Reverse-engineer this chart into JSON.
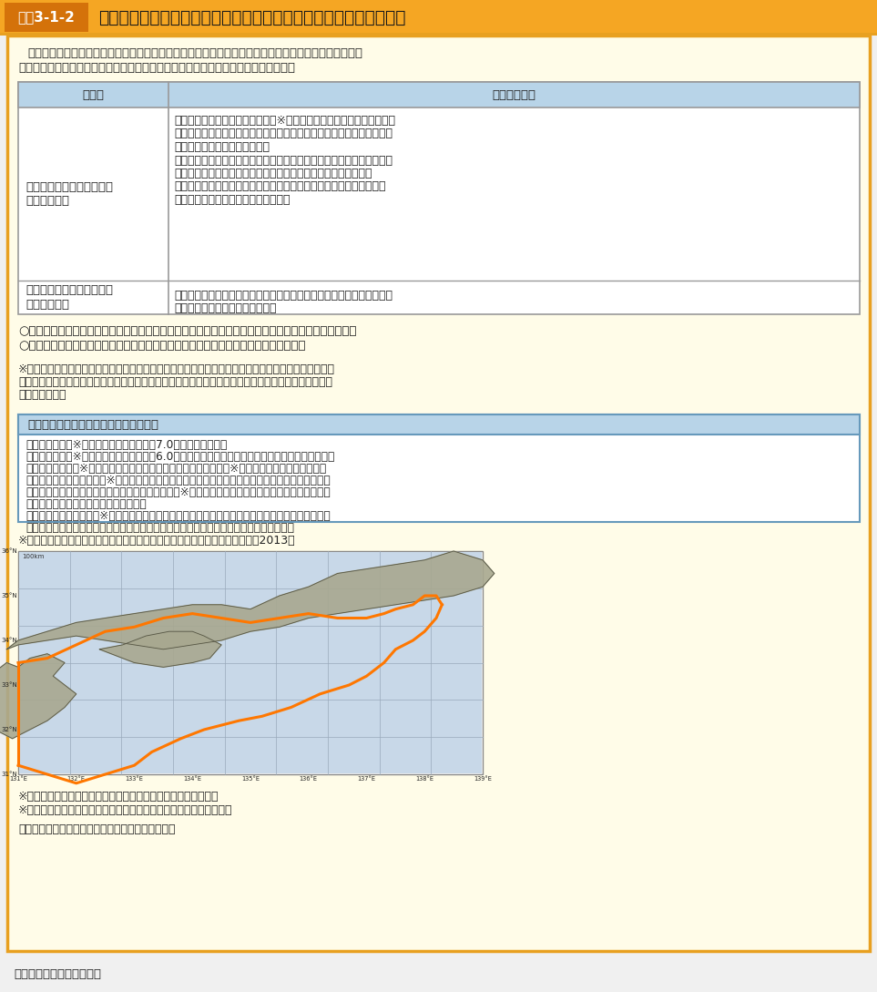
{
  "title_bar_color": "#F5A623",
  "title_label_bg": "#D4720A",
  "title_label_text": "図表3-1-2",
  "title_text": "気象庁が発表する南海トラフ地震に関連する情報の種類と発表条件",
  "outer_bg": "#FFFCE8",
  "outer_border": "#E8A020",
  "table_header_bg": "#B8D4E8",
  "table_border": "#999999",
  "blue_box_header_bg": "#B8D4E8",
  "blue_box_border": "#6699BB",
  "source_text": "出典：気象庁ホームページ",
  "intro_line1": "　南海トラフ全域を対象として、異常な現象を観測した場合や地震発生の可能性が相対的に高まってい",
  "intro_line2": "ると評価した場合等に、気象庁が「南海トラフ地震に関連する情報」の発表を行う。",
  "table_header_col1": "情報名",
  "table_header_col2": "情報発表条件",
  "row1_left": "南海トラフ地震に関連する\n情報（臨時）",
  "row1_bullets": [
    "・南海トラフ沿いで異常な現象（※１）が観測され、その現象が南海ト",
    "　ラフ沿いの大規模な地震と関連するかどうか調査を開始した場合、ま",
    "　たは調査を継続している場合",
    "・観測された現象を調査した結果、南海トラフ沿いの大規模な地震発生",
    "　の可能性が平常時と比べて相対的に高まったと評価された場合",
    "・南海トラフ沿いの大規模な地震発生の可能性が相対的に高まった状",
    "　態ではなくなったと評価された場合"
  ],
  "row2_left": "南海トラフ地震に関連する\n情報（定例）",
  "row2_bullets": [
    "・「南海トラフ沿いの地震に関する評価検討会」の定例会合において評",
    "　価した調査結果を発表する場合"
  ],
  "note_o1": "○本情報の運用開始に伴い、東海地震のみに着目した情報（東海地震に関連する情報）の発表はない。",
  "note_o2": "○本情報を発表していなくても、南海トラフ沿いの大規模地震が発生することもある。",
  "note1_lines": [
    "※１：南海トラフ沿いでマグニチュード７以上の地震が発生した場合や東海地域に設置されたひずみ計",
    "　　　に有意な変化を観測した場合など、気象庁が調査を開始する対象となる現象で、具体的には次の",
    "　　　とおり。"
  ],
  "blue_box_title": "気象庁が調査を開始する対象となる現象",
  "blue_box_items": [
    "・想定震源域（※２）内でマグニチュード7.0以上の地震が発生",
    "・想定震源域（※２）内でマグニチュード6.0以上の（或いは震度５弱以上を観測した）地震が発生",
    "　し、ひずみ計（※３）で当該地震に対応するステップ状の変化（※４）以外の特異な変化を観測",
    "・１カ所以上のひずみ計（※３）で有意な変化を観測し、同時に他の複数の観測点でもそれに関係す",
    "　ると思われる変化を観測している等、ひずみ計（※３）で南海トラフ沿いの大規模地震との関連性",
    "　の検討が必要と認められる変化を観測",
    "・その他、想定震源域（※２）内のプレート境界の固着状況の変化を示す可能性のある現象が観測さ",
    "　れた等、南海トラフ沿いの大規模地震との関連性の検討が必要と認められる現象を観測"
  ],
  "note2_line": "※２：想定震源域；下図に示す南海トラフ地震の想定震源域（中央防災会議、2013）",
  "note3_line": "※３：ひずみ計；当面、東海地域に設置されたひずみ計を使用。",
  "note4_line": "※４：ステップ状の変化；地震発生時に通常観測される段差的な変化",
  "closing_line": "上記は、今後の検討により見直されることがある。"
}
